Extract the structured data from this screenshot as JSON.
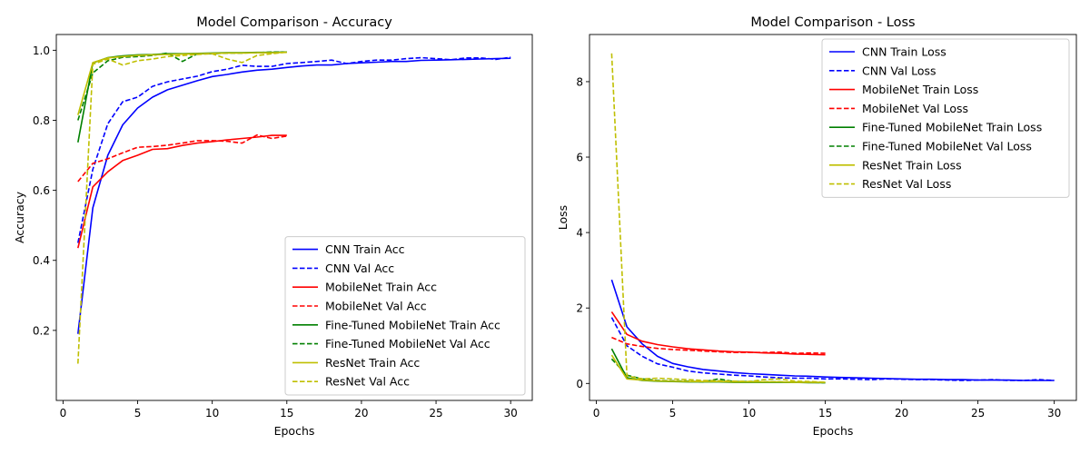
{
  "chart_data": [
    {
      "type": "line",
      "title": "Model Comparison - Accuracy",
      "xlabel": "Epochs",
      "ylabel": "Accuracy",
      "xlim": [
        -0.45,
        31.45
      ],
      "ylim": [
        0.0,
        1.045
      ],
      "xticks": [
        0,
        5,
        10,
        15,
        20,
        25,
        30
      ],
      "yticks": [
        0.2,
        0.4,
        0.6,
        0.8,
        1.0
      ],
      "ytick_labels": [
        "0.2",
        "0.4",
        "0.6",
        "0.8",
        "1.0"
      ],
      "grid": false,
      "legend_position": "lower-right",
      "series": [
        {
          "name": "CNN Train Acc",
          "color": "#0000ff",
          "dash": false,
          "x": [
            1,
            2,
            3,
            4,
            5,
            6,
            7,
            8,
            9,
            10,
            11,
            12,
            13,
            14,
            15,
            16,
            17,
            18,
            19,
            20,
            21,
            22,
            23,
            24,
            25,
            26,
            27,
            28,
            29,
            30
          ],
          "y": [
            0.19,
            0.55,
            0.7,
            0.787,
            0.835,
            0.866,
            0.887,
            0.9,
            0.913,
            0.925,
            0.931,
            0.938,
            0.943,
            0.946,
            0.951,
            0.955,
            0.958,
            0.958,
            0.962,
            0.964,
            0.966,
            0.968,
            0.968,
            0.971,
            0.972,
            0.973,
            0.974,
            0.975,
            0.976,
            0.977
          ]
        },
        {
          "name": "CNN Val Acc",
          "color": "#0000ff",
          "dash": true,
          "x": [
            1,
            2,
            3,
            4,
            5,
            6,
            7,
            8,
            9,
            10,
            11,
            12,
            13,
            14,
            15,
            16,
            17,
            18,
            19,
            20,
            21,
            22,
            23,
            24,
            25,
            26,
            27,
            28,
            29,
            30
          ],
          "y": [
            0.45,
            0.66,
            0.79,
            0.853,
            0.866,
            0.897,
            0.91,
            0.918,
            0.926,
            0.939,
            0.946,
            0.957,
            0.954,
            0.954,
            0.962,
            0.965,
            0.968,
            0.972,
            0.962,
            0.968,
            0.972,
            0.972,
            0.976,
            0.979,
            0.976,
            0.973,
            0.978,
            0.978,
            0.974,
            0.98
          ]
        },
        {
          "name": "MobileNet Train Acc",
          "color": "#ff0000",
          "dash": false,
          "x": [
            1,
            2,
            3,
            4,
            5,
            6,
            7,
            8,
            9,
            10,
            11,
            12,
            13,
            14,
            15
          ],
          "y": [
            0.435,
            0.61,
            0.653,
            0.685,
            0.7,
            0.717,
            0.719,
            0.728,
            0.735,
            0.739,
            0.744,
            0.748,
            0.752,
            0.757,
            0.757
          ]
        },
        {
          "name": "MobileNet Val Acc",
          "color": "#ff0000",
          "dash": true,
          "x": [
            1,
            2,
            3,
            4,
            5,
            6,
            7,
            8,
            9,
            10,
            11,
            12,
            13,
            14,
            15
          ],
          "y": [
            0.625,
            0.677,
            0.69,
            0.707,
            0.723,
            0.725,
            0.729,
            0.735,
            0.742,
            0.742,
            0.74,
            0.735,
            0.758,
            0.748,
            0.755
          ]
        },
        {
          "name": "Fine-Tuned MobileNet Train Acc",
          "color": "#008000",
          "dash": false,
          "x": [
            1,
            2,
            3,
            4,
            5,
            6,
            7,
            8,
            9,
            10,
            11,
            12,
            13,
            14,
            15
          ],
          "y": [
            0.737,
            0.964,
            0.979,
            0.984,
            0.987,
            0.988,
            0.99,
            0.99,
            0.991,
            0.992,
            0.993,
            0.993,
            0.994,
            0.994,
            0.995
          ]
        },
        {
          "name": "Fine-Tuned MobileNet Val Acc",
          "color": "#008000",
          "dash": true,
          "x": [
            1,
            2,
            3,
            4,
            5,
            6,
            7,
            8,
            9,
            10,
            11,
            12,
            13,
            14,
            15
          ],
          "y": [
            0.8,
            0.935,
            0.97,
            0.98,
            0.982,
            0.985,
            0.992,
            0.968,
            0.99,
            0.99,
            0.992,
            0.992,
            0.993,
            0.995,
            0.995
          ]
        },
        {
          "name": "ResNet Train Acc",
          "color": "#bfbf00",
          "dash": false,
          "x": [
            1,
            2,
            3,
            4,
            5,
            6,
            7,
            8,
            9,
            10,
            11,
            12,
            13,
            14,
            15
          ],
          "y": [
            0.815,
            0.965,
            0.978,
            0.982,
            0.985,
            0.987,
            0.988,
            0.989,
            0.99,
            0.991,
            0.992,
            0.992,
            0.993,
            0.993,
            0.994
          ]
        },
        {
          "name": "ResNet Val Acc",
          "color": "#bfbf00",
          "dash": true,
          "x": [
            1,
            2,
            3,
            4,
            5,
            6,
            7,
            8,
            9,
            10,
            11,
            12,
            13,
            14,
            15
          ],
          "y": [
            0.105,
            0.96,
            0.975,
            0.958,
            0.97,
            0.975,
            0.982,
            0.985,
            0.988,
            0.99,
            0.975,
            0.965,
            0.985,
            0.99,
            0.995
          ]
        }
      ]
    },
    {
      "type": "line",
      "title": "Model Comparison - Loss",
      "xlabel": "Epochs",
      "ylabel": "Loss",
      "xlim": [
        -0.45,
        31.45
      ],
      "ylim": [
        -0.45,
        9.25
      ],
      "xticks": [
        0,
        5,
        10,
        15,
        20,
        25,
        30
      ],
      "yticks": [
        0,
        2,
        4,
        6,
        8
      ],
      "ytick_labels": [
        "0",
        "2",
        "4",
        "6",
        "8"
      ],
      "grid": false,
      "legend_position": "upper-right",
      "series": [
        {
          "name": "CNN Train Loss",
          "color": "#0000ff",
          "dash": false,
          "x": [
            1,
            2,
            3,
            4,
            5,
            6,
            7,
            8,
            9,
            10,
            11,
            12,
            13,
            14,
            15,
            16,
            17,
            18,
            19,
            20,
            21,
            22,
            23,
            24,
            25,
            26,
            27,
            28,
            29,
            30
          ],
          "y": [
            2.75,
            1.5,
            1.05,
            0.72,
            0.53,
            0.44,
            0.37,
            0.33,
            0.29,
            0.26,
            0.24,
            0.22,
            0.2,
            0.19,
            0.17,
            0.16,
            0.15,
            0.14,
            0.13,
            0.12,
            0.11,
            0.11,
            0.1,
            0.1,
            0.09,
            0.09,
            0.09,
            0.08,
            0.08,
            0.08
          ]
        },
        {
          "name": "CNN Val Loss",
          "color": "#0000ff",
          "dash": true,
          "x": [
            1,
            2,
            3,
            4,
            5,
            6,
            7,
            8,
            9,
            10,
            11,
            12,
            13,
            14,
            15,
            16,
            17,
            18,
            19,
            20,
            21,
            22,
            23,
            24,
            25,
            26,
            27,
            28,
            29,
            30
          ],
          "y": [
            1.75,
            1.0,
            0.72,
            0.52,
            0.43,
            0.33,
            0.28,
            0.25,
            0.22,
            0.2,
            0.17,
            0.15,
            0.14,
            0.14,
            0.12,
            0.12,
            0.11,
            0.1,
            0.12,
            0.11,
            0.1,
            0.1,
            0.09,
            0.08,
            0.09,
            0.1,
            0.08,
            0.08,
            0.1,
            0.08
          ]
        },
        {
          "name": "MobileNet Train Loss",
          "color": "#ff0000",
          "dash": false,
          "x": [
            1,
            2,
            3,
            4,
            5,
            6,
            7,
            8,
            9,
            10,
            11,
            12,
            13,
            14,
            15
          ],
          "y": [
            1.9,
            1.3,
            1.12,
            1.03,
            0.97,
            0.92,
            0.89,
            0.86,
            0.84,
            0.83,
            0.81,
            0.8,
            0.78,
            0.77,
            0.76
          ]
        },
        {
          "name": "MobileNet Val Loss",
          "color": "#ff0000",
          "dash": true,
          "x": [
            1,
            2,
            3,
            4,
            5,
            6,
            7,
            8,
            9,
            10,
            11,
            12,
            13,
            14,
            15
          ],
          "y": [
            1.22,
            1.05,
            0.98,
            0.93,
            0.9,
            0.88,
            0.86,
            0.84,
            0.82,
            0.82,
            0.82,
            0.83,
            0.8,
            0.81,
            0.8
          ]
        },
        {
          "name": "Fine-Tuned MobileNet Train Loss",
          "color": "#008000",
          "dash": false,
          "x": [
            1,
            2,
            3,
            4,
            5,
            6,
            7,
            8,
            9,
            10,
            11,
            12,
            13,
            14,
            15
          ],
          "y": [
            0.92,
            0.15,
            0.08,
            0.06,
            0.05,
            0.04,
            0.04,
            0.04,
            0.03,
            0.03,
            0.03,
            0.03,
            0.03,
            0.02,
            0.02
          ]
        },
        {
          "name": "Fine-Tuned MobileNet Val Loss",
          "color": "#008000",
          "dash": true,
          "x": [
            1,
            2,
            3,
            4,
            5,
            6,
            7,
            8,
            9,
            10,
            11,
            12,
            13,
            14,
            15
          ],
          "y": [
            0.65,
            0.22,
            0.12,
            0.08,
            0.07,
            0.06,
            0.04,
            0.12,
            0.05,
            0.05,
            0.04,
            0.04,
            0.03,
            0.03,
            0.02
          ]
        },
        {
          "name": "ResNet Train Loss",
          "color": "#bfbf00",
          "dash": false,
          "x": [
            1,
            2,
            3,
            4,
            5,
            6,
            7,
            8,
            9,
            10,
            11,
            12,
            13,
            14,
            15
          ],
          "y": [
            0.75,
            0.12,
            0.09,
            0.07,
            0.06,
            0.05,
            0.05,
            0.05,
            0.04,
            0.04,
            0.04,
            0.04,
            0.03,
            0.03,
            0.03
          ]
        },
        {
          "name": "ResNet Val Loss",
          "color": "#bfbf00",
          "dash": true,
          "x": [
            1,
            2,
            3,
            4,
            5,
            6,
            7,
            8,
            9,
            10,
            11,
            12,
            13,
            14,
            15
          ],
          "y": [
            8.75,
            0.2,
            0.12,
            0.14,
            0.12,
            0.1,
            0.08,
            0.07,
            0.06,
            0.05,
            0.1,
            0.12,
            0.06,
            0.05,
            0.03
          ]
        }
      ]
    }
  ]
}
